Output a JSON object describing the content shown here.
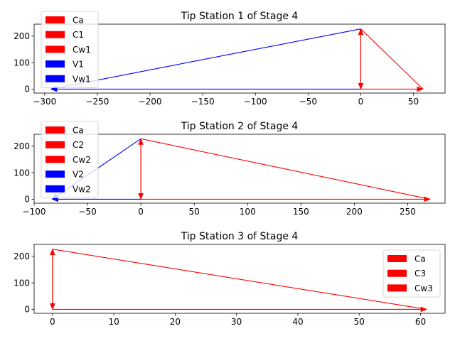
{
  "chart_data": [
    {
      "type": "vector-diagram",
      "title": "Tip Station 1 of Stage 4",
      "xlim": [
        -310,
        80
      ],
      "ylim": [
        -15,
        245
      ],
      "xticks": [
        -300,
        -250,
        -200,
        -150,
        -100,
        -50,
        0,
        50
      ],
      "xtick_labels": [
        "−300",
        "−250",
        "−200",
        "−150",
        "−100",
        "−50",
        "0",
        "50"
      ],
      "yticks": [
        0,
        100,
        200
      ],
      "ytick_labels": [
        "0",
        "100",
        "200"
      ],
      "legend": "top-left",
      "series": [
        {
          "name": "Ca",
          "color": "#ff0000",
          "from": [
            0,
            0
          ],
          "to": [
            0,
            227
          ]
        },
        {
          "name": "C1",
          "color": "#ff0000",
          "from": [
            0,
            227
          ],
          "to": [
            0,
            0
          ]
        },
        {
          "name": "Cw1",
          "color": "#ff0000",
          "from": [
            0,
            0
          ],
          "to": [
            59,
            0
          ]
        },
        {
          "name": "V1",
          "color": "#0000ff",
          "from": [
            0,
            227
          ],
          "to": [
            -294,
            0
          ]
        },
        {
          "name": "Vw1",
          "color": "#0000ff",
          "from": [
            0,
            0
          ],
          "to": [
            -294,
            0
          ]
        }
      ],
      "extra_segments": [
        {
          "color": "#ff0000",
          "from": [
            0,
            227
          ],
          "to": [
            59,
            0
          ]
        }
      ]
    },
    {
      "type": "vector-diagram",
      "title": "Tip Station 2 of Stage 4",
      "xlim": [
        -100,
        285
      ],
      "ylim": [
        -15,
        245
      ],
      "xticks": [
        -100,
        -50,
        0,
        50,
        100,
        150,
        200,
        250
      ],
      "xtick_labels": [
        "−100",
        "−50",
        "0",
        "50",
        "100",
        "150",
        "200",
        "250"
      ],
      "yticks": [
        0,
        100,
        200
      ],
      "ytick_labels": [
        "0",
        "100",
        "200"
      ],
      "legend": "top-left",
      "series": [
        {
          "name": "Ca",
          "color": "#ff0000",
          "from": [
            0,
            0
          ],
          "to": [
            0,
            228
          ]
        },
        {
          "name": "C2",
          "color": "#ff0000",
          "from": [
            0,
            228
          ],
          "to": [
            0,
            0
          ]
        },
        {
          "name": "Cw2",
          "color": "#ff0000",
          "from": [
            0,
            0
          ],
          "to": [
            271,
            0
          ]
        },
        {
          "name": "V2",
          "color": "#0000ff",
          "from": [
            0,
            228
          ],
          "to": [
            -83,
            0
          ]
        },
        {
          "name": "Vw2",
          "color": "#0000ff",
          "from": [
            0,
            0
          ],
          "to": [
            -83,
            0
          ]
        }
      ],
      "extra_segments": [
        {
          "color": "#ff0000",
          "from": [
            0,
            228
          ],
          "to": [
            271,
            0
          ]
        }
      ]
    },
    {
      "type": "vector-diagram",
      "title": "Tip Station 3 of Stage 4",
      "xlim": [
        -3,
        64
      ],
      "ylim": [
        -15,
        245
      ],
      "xticks": [
        0,
        10,
        20,
        30,
        40,
        50,
        60
      ],
      "xtick_labels": [
        "0",
        "10",
        "20",
        "30",
        "40",
        "50",
        "60"
      ],
      "yticks": [
        0,
        100,
        200
      ],
      "ytick_labels": [
        "0",
        "100",
        "200"
      ],
      "legend": "top-right",
      "series": [
        {
          "name": "Ca",
          "color": "#ff0000",
          "from": [
            0,
            0
          ],
          "to": [
            0,
            227
          ]
        },
        {
          "name": "C3",
          "color": "#ff0000",
          "from": [
            0,
            227
          ],
          "to": [
            0,
            0
          ]
        },
        {
          "name": "Cw3",
          "color": "#ff0000",
          "from": [
            0,
            0
          ],
          "to": [
            61,
            0
          ]
        }
      ],
      "extra_segments": [
        {
          "color": "#ff0000",
          "from": [
            0,
            227
          ],
          "to": [
            61,
            0
          ]
        }
      ]
    }
  ]
}
